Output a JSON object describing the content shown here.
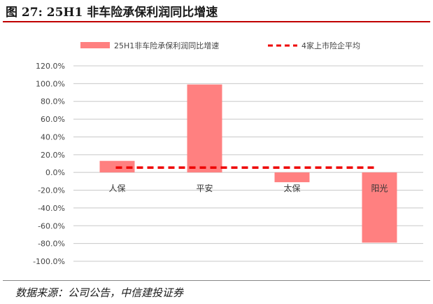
{
  "figure": {
    "title": "图 27: 25H1 非车险承保利润同比增速",
    "source": "数据来源：公司公告，中信建投证券"
  },
  "colors": {
    "bar": "#ff8080",
    "avg_line": "#ee0000",
    "grid": "#c8c8c8",
    "title_rule": "#c00000"
  },
  "chart_data": {
    "type": "bar",
    "categories": [
      "人保",
      "平安",
      "太保",
      "阳光"
    ],
    "series": [
      {
        "name": "25H1非车险承保利润同比增速",
        "type": "bar",
        "values": [
          13.0,
          99.0,
          -11.0,
          -79.0
        ]
      },
      {
        "name": "4家上市险企平均",
        "type": "line",
        "style": "dashed",
        "values": [
          5.5,
          5.5,
          5.5,
          5.5
        ]
      }
    ],
    "ylim": [
      -100,
      120
    ],
    "yticks": [
      120,
      100,
      80,
      60,
      40,
      20,
      0,
      -20,
      -40,
      -60,
      -80,
      -100
    ],
    "ytick_labels": [
      "120.0%",
      "100.0%",
      "80.0%",
      "60.0%",
      "40.0%",
      "20.0%",
      "0.0%",
      "-20.0%",
      "-40.0%",
      "-60.0%",
      "-80.0%",
      "-100.0%"
    ],
    "y_unit": "%",
    "grid": true,
    "legend_position": "top"
  }
}
